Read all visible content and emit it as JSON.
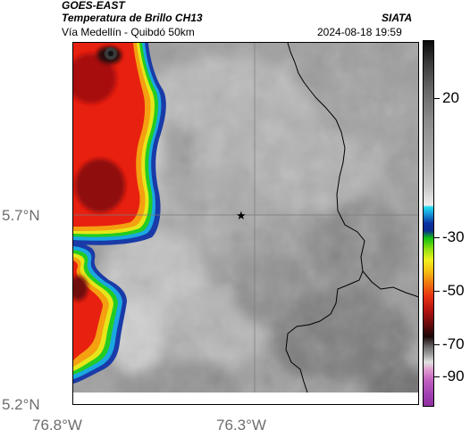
{
  "header": {
    "satellite": "GOES-EAST",
    "product": "Temperatura de Brillo CH13",
    "route": "Vía Medellín - Quibdó 50km",
    "org": "SIATA",
    "datetime": "2024-08-18 19:59"
  },
  "axes": {
    "lat_labels": [
      "5.7°N",
      "5.2°N"
    ],
    "lon_labels": [
      "76.8°W",
      "76.3°W"
    ]
  },
  "colorbar": {
    "tick_labels": [
      "20",
      "-30",
      "-50",
      "-70",
      "-90"
    ],
    "unit": ""
  },
  "marker": {
    "icon": "star-marker-icon"
  },
  "colors": {
    "frame": "#000000",
    "axis_label": "#6e6e6e",
    "gridline": "#888888",
    "border_line": "#000000"
  }
}
